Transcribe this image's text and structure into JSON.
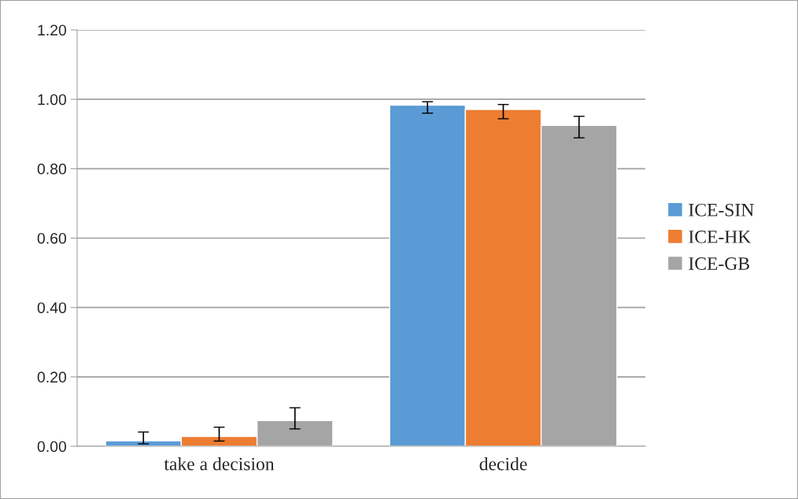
{
  "chart_data": {
    "type": "bar",
    "categories": [
      "take a decision",
      "decide"
    ],
    "series": [
      {
        "name": "ICE-SIN",
        "color": "#5b9bd5",
        "values": [
          0.016,
          0.983
        ],
        "errors": [
          [
            0.007,
            0.041
          ],
          [
            0.96,
            0.993
          ]
        ]
      },
      {
        "name": "ICE-HK",
        "color": "#ed7d31",
        "values": [
          0.028,
          0.971
        ],
        "errors": [
          [
            0.015,
            0.055
          ],
          [
            0.944,
            0.985
          ]
        ]
      },
      {
        "name": "ICE-GB",
        "color": "#a5a5a5",
        "values": [
          0.074,
          0.925
        ],
        "errors": [
          [
            0.05,
            0.111
          ],
          [
            0.889,
            0.951
          ]
        ]
      }
    ],
    "ylim": [
      0,
      1.2
    ],
    "yticks": [
      {
        "value": 0,
        "label": "0.00"
      },
      {
        "value": 0.2,
        "label": "0.20"
      },
      {
        "value": 0.4,
        "label": "0.40"
      },
      {
        "value": 0.6,
        "label": "0.60"
      },
      {
        "value": 0.8,
        "label": "0.80"
      },
      {
        "value": 1.0,
        "label": "1.00"
      },
      {
        "value": 1.2,
        "label": "1.20"
      }
    ],
    "grid": "y",
    "legend": "right"
  }
}
